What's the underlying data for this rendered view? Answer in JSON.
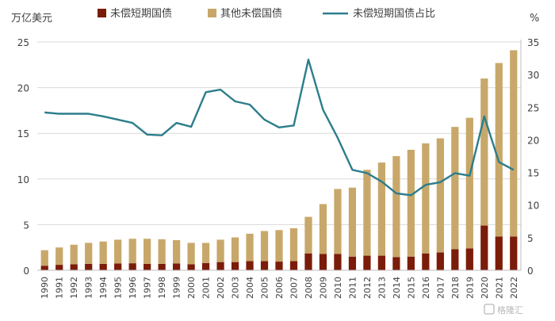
{
  "chart_data": {
    "type": "bar",
    "stacked": true,
    "categories": [
      "1990",
      "1991",
      "1992",
      "1993",
      "1994",
      "1995",
      "1996",
      "1997",
      "1998",
      "1999",
      "2000",
      "2001",
      "2002",
      "2003",
      "2004",
      "2005",
      "2006",
      "2007",
      "2008",
      "2009",
      "2010",
      "2011",
      "2012",
      "2013",
      "2014",
      "2015",
      "2016",
      "2017",
      "2018",
      "2019",
      "2020",
      "2021",
      "2022"
    ],
    "left_axis_unit": "万亿美元",
    "right_axis_unit": "%",
    "ylim_left": [
      0,
      25
    ],
    "yticks_left": [
      0,
      5,
      10,
      15,
      20,
      25
    ],
    "ylim_right": [
      0,
      35
    ],
    "yticks_right": [
      0,
      5,
      10,
      15,
      20,
      25,
      30,
      35
    ],
    "grid": true,
    "legend_position": "top",
    "series": [
      {
        "name": "未偿短期国债",
        "type": "bar",
        "axis": "left",
        "color": "#7B1C0A",
        "values": [
          0.5,
          0.6,
          0.65,
          0.7,
          0.7,
          0.75,
          0.77,
          0.7,
          0.7,
          0.75,
          0.65,
          0.8,
          0.9,
          0.9,
          1.0,
          1.0,
          0.95,
          1.0,
          1.85,
          1.8,
          1.8,
          1.5,
          1.6,
          1.6,
          1.45,
          1.5,
          1.85,
          1.95,
          2.3,
          2.4,
          4.9,
          3.7,
          3.7
        ]
      },
      {
        "name": "其他未偿国债",
        "type": "bar",
        "axis": "left",
        "color": "#C8A86A",
        "values": [
          1.7,
          1.9,
          2.15,
          2.3,
          2.45,
          2.6,
          2.68,
          2.75,
          2.7,
          2.55,
          2.35,
          2.2,
          2.45,
          2.7,
          3.0,
          3.3,
          3.45,
          3.6,
          4.0,
          5.45,
          7.1,
          7.55,
          9.4,
          10.2,
          11.05,
          11.7,
          12.05,
          12.5,
          13.4,
          14.3,
          16.1,
          19.0,
          20.4
        ]
      },
      {
        "name": "未偿短期国债占比",
        "type": "line",
        "axis": "right",
        "color": "#2C7D8C",
        "values": [
          24.2,
          24.0,
          24.0,
          24.0,
          23.6,
          23.1,
          22.6,
          20.8,
          20.7,
          22.6,
          22.0,
          27.3,
          27.7,
          25.9,
          25.4,
          23.1,
          21.9,
          22.2,
          32.3,
          24.6,
          20.3,
          15.4,
          14.9,
          13.6,
          11.8,
          11.5,
          13.1,
          13.5,
          14.9,
          14.5,
          23.6,
          16.6,
          15.4
        ]
      }
    ]
  },
  "watermark": "格隆汇"
}
